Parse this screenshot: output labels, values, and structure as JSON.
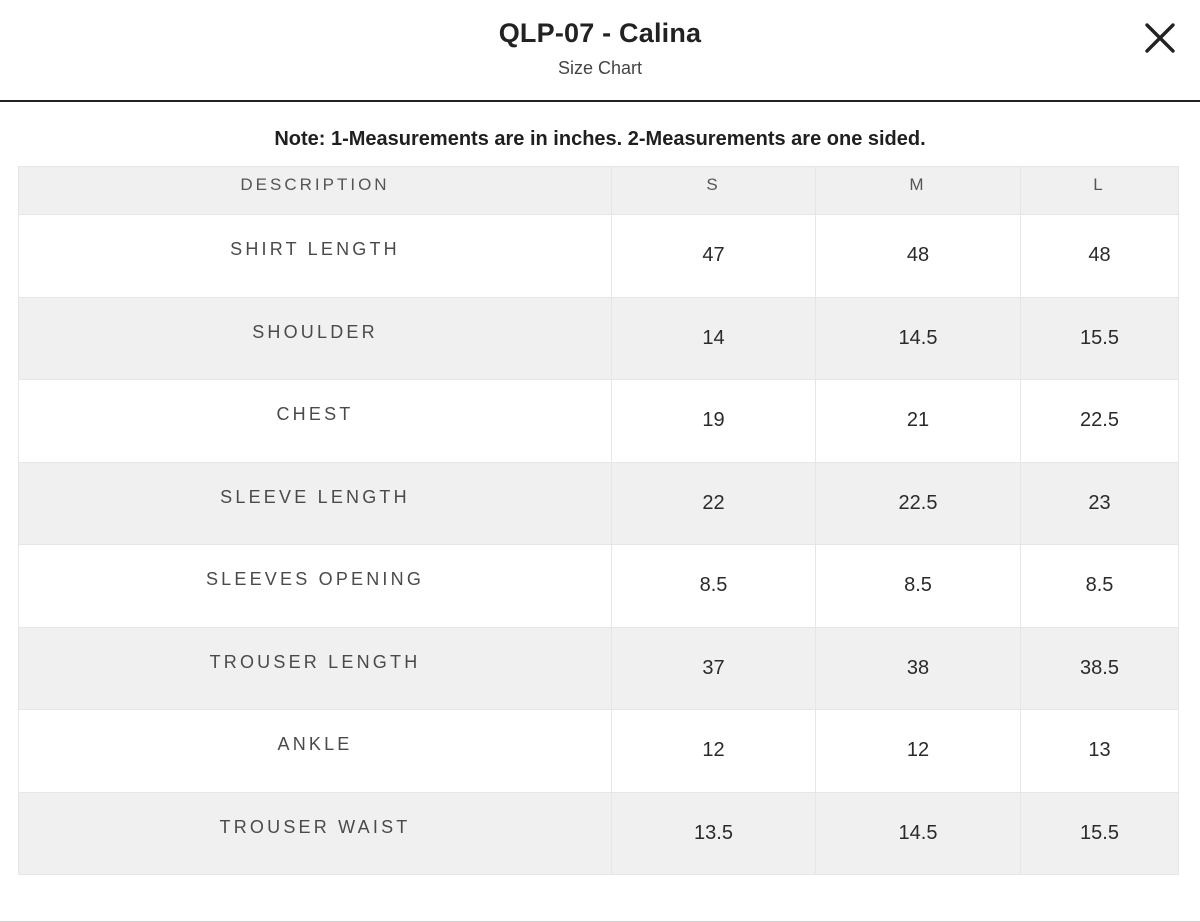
{
  "header": {
    "title": "QLP-07 - Calina",
    "subtitle": "Size Chart",
    "close_icon": "close-icon"
  },
  "note": "Note: 1-Measurements are in inches. 2-Measurements are one sided.",
  "table": {
    "columns": [
      "DESCRIPTION",
      "S",
      "M",
      "L"
    ],
    "rows": [
      {
        "description": "SHIRT LENGTH",
        "s": "47",
        "m": "48",
        "l": "48"
      },
      {
        "description": "SHOULDER",
        "s": "14",
        "m": "14.5",
        "l": "15.5"
      },
      {
        "description": "CHEST",
        "s": "19",
        "m": "21",
        "l": "22.5"
      },
      {
        "description": "SLEEVE LENGTH",
        "s": "22",
        "m": "22.5",
        "l": "23"
      },
      {
        "description": "SLEEVES OPENING",
        "s": "8.5",
        "m": "8.5",
        "l": "8.5"
      },
      {
        "description": "TROUSER LENGTH",
        "s": "37",
        "m": "38",
        "l": "38.5"
      },
      {
        "description": "ANKLE",
        "s": "12",
        "m": "12",
        "l": "13"
      },
      {
        "description": "TROUSER WAIST",
        "s": "13.5",
        "m": "14.5",
        "l": "15.5"
      }
    ]
  },
  "colors": {
    "header_rule": "#222222",
    "stripe": "#f0f0f0",
    "border": "#e6e6e6"
  }
}
